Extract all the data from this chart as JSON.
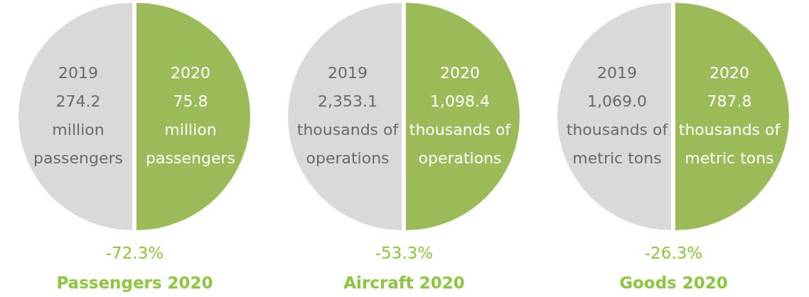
{
  "chart_data": [
    {
      "type": "pie",
      "title": "Passengers 2020",
      "subtitle": "-72.3%",
      "categories": [
        "2019",
        "2020"
      ],
      "values": [
        50,
        50
      ],
      "annotations": [
        "274.2 million passengers",
        "75.8 million passengers"
      ],
      "colors": [
        "#d9d9d9",
        "#9bbb59"
      ]
    },
    {
      "type": "pie",
      "title": "Aircraft 2020",
      "subtitle": "-53.3%",
      "categories": [
        "2019",
        "2020"
      ],
      "values": [
        50,
        50
      ],
      "annotations": [
        "2,353.1 thousands of operations",
        "1,098.4 thousands of operations"
      ],
      "colors": [
        "#d9d9d9",
        "#9bbb59"
      ]
    },
    {
      "type": "pie",
      "title": "Goods 2020",
      "subtitle": "-26.3%",
      "categories": [
        "2019",
        "2020"
      ],
      "values": [
        50,
        50
      ],
      "annotations": [
        "1,069.0 thousands of metric tons",
        "787.8 thousands of metric tons"
      ],
      "colors": [
        "#d9d9d9",
        "#9bbb59"
      ]
    }
  ]
}
